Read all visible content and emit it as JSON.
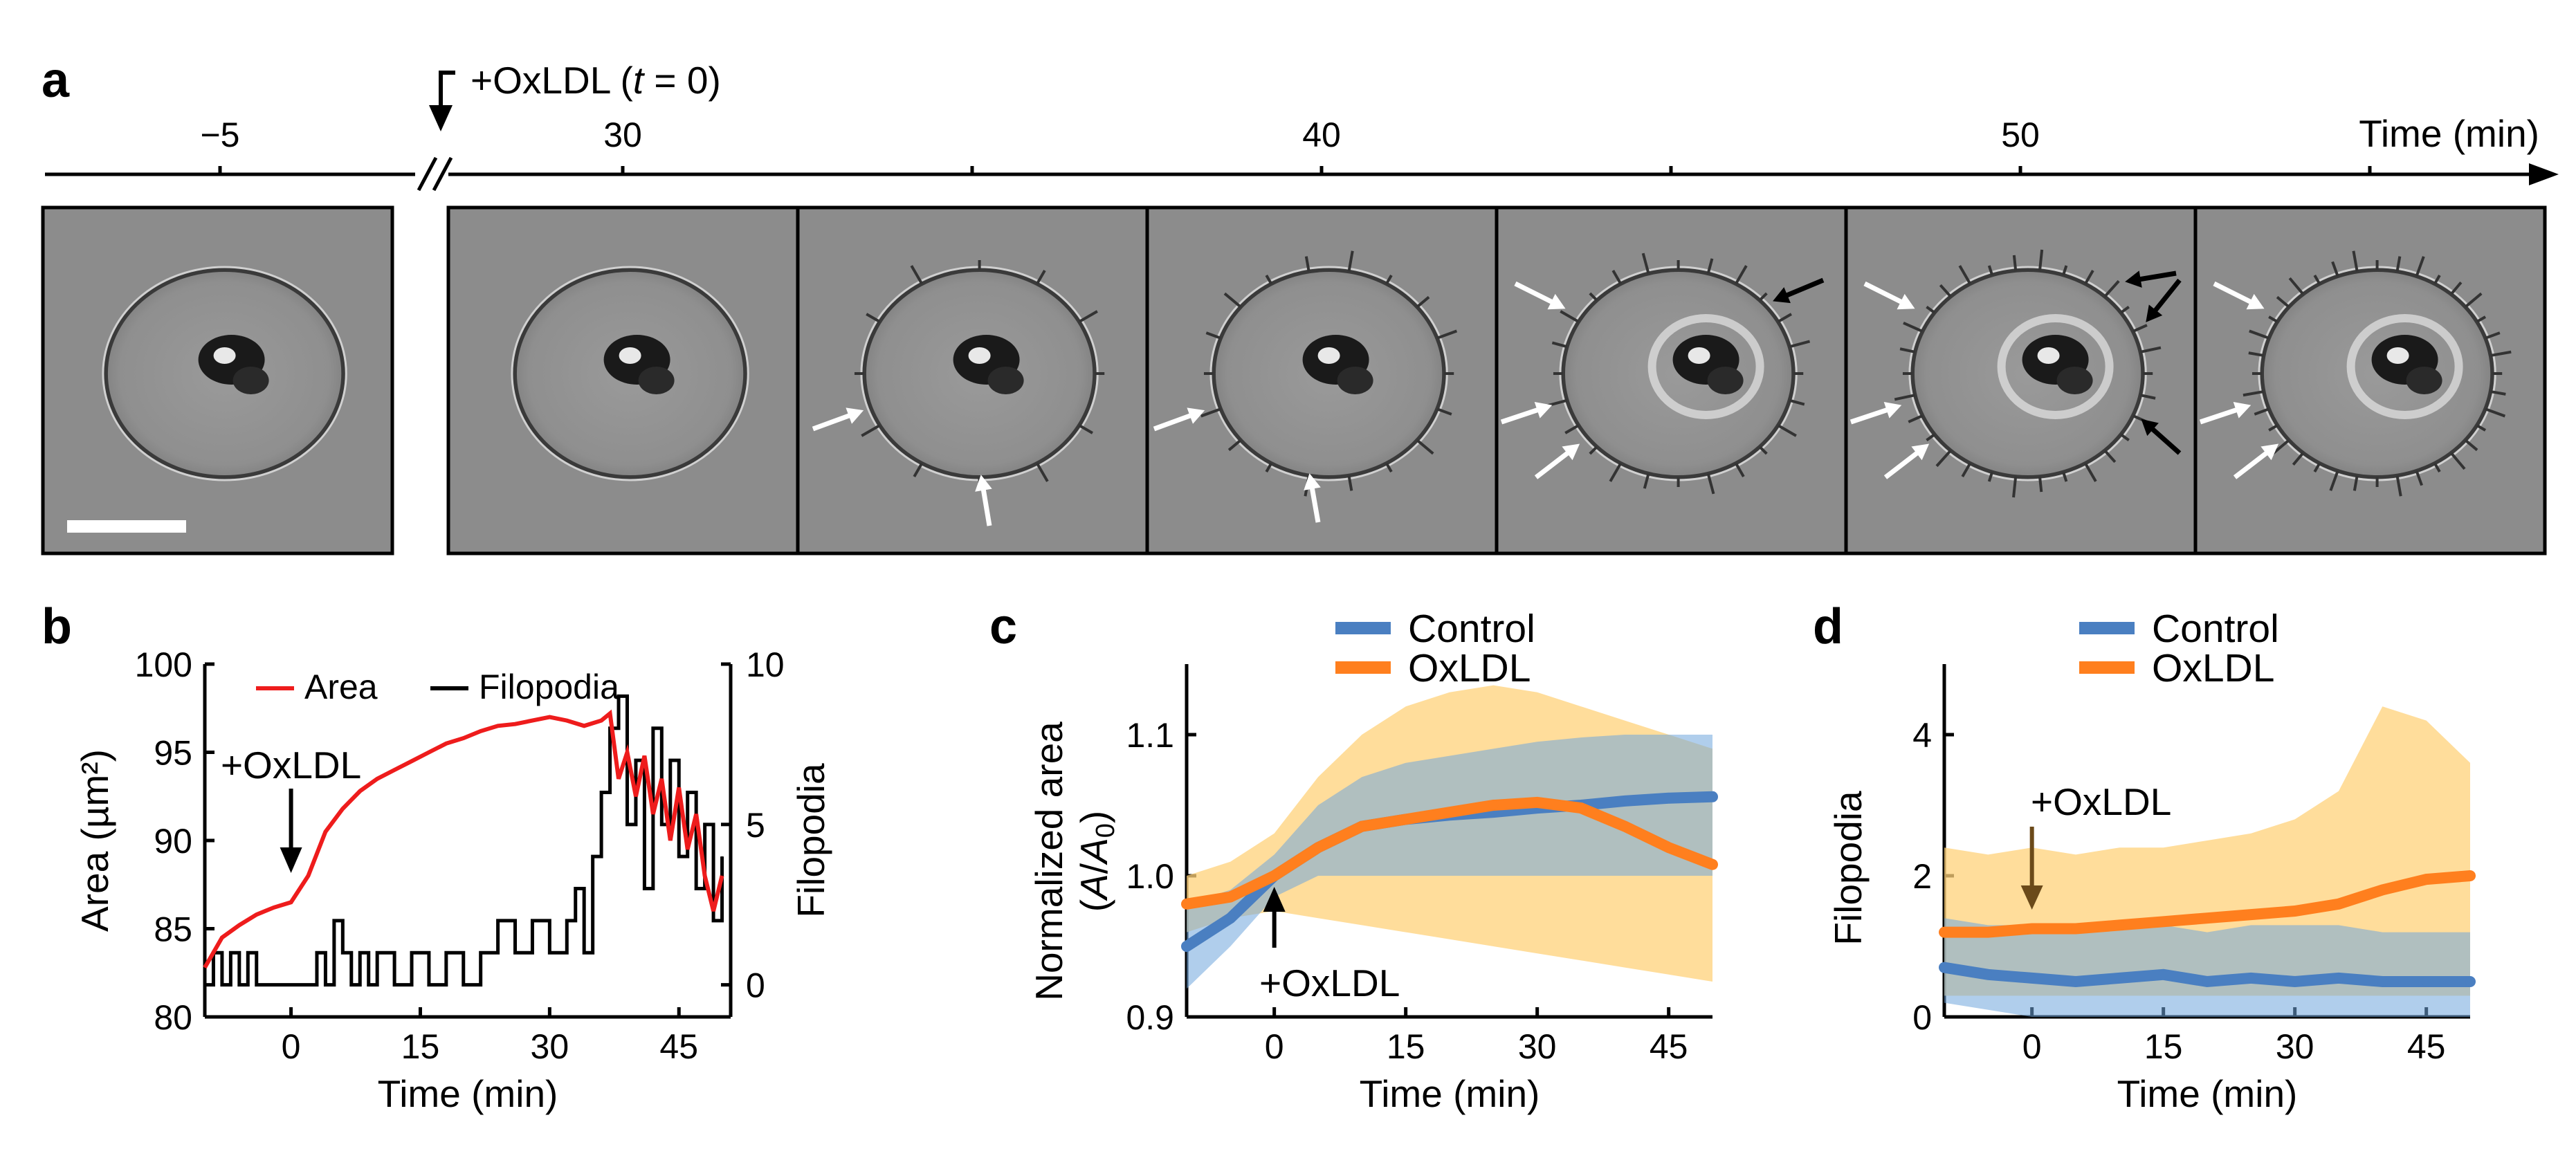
{
  "figure": {
    "panel_a": {
      "letter": "a",
      "timeline_label": "Time (min)",
      "treatment_label": "+OxLDL",
      "treatment_time": "t",
      "treatment_time_eq": " = 0",
      "ticks": [
        "−5",
        "30",
        "40",
        "50"
      ],
      "frames": [
        {
          "name": "frame-minus-5",
          "white_arrows": 0,
          "black_arrows": 0,
          "scale_bar": true
        },
        {
          "name": "frame-30",
          "white_arrows": 0,
          "black_arrows": 0
        },
        {
          "name": "frame-35",
          "white_arrows": 2,
          "black_arrows": 0
        },
        {
          "name": "frame-40",
          "white_arrows": 2,
          "black_arrows": 0
        },
        {
          "name": "frame-45",
          "white_arrows": 3,
          "black_arrows": 1
        },
        {
          "name": "frame-50",
          "white_arrows": 3,
          "black_arrows": 3
        },
        {
          "name": "frame-55",
          "white_arrows": 3,
          "black_arrows": 0
        }
      ]
    },
    "colors": {
      "area": "#ee1c1c",
      "filopodia": "#000000",
      "control": "#4a7fc1",
      "oxldl": "#ff7f1e",
      "control_band": "#6fa6dc",
      "oxldl_band": "#ffd27a",
      "image_gray": "#8c8c8c"
    }
  },
  "chart_data": [
    {
      "panel": "b",
      "type": "line",
      "title": "",
      "xlabel": "Time (min)",
      "ylabel": "Area (µm²)",
      "y2label": "Filopodia",
      "xlim": [
        -10,
        51
      ],
      "ylim": [
        80,
        100
      ],
      "y2lim": [
        -1,
        10
      ],
      "xticks": [
        "0",
        "15",
        "30",
        "45"
      ],
      "yticks": [
        "80",
        "85",
        "90",
        "95",
        "100"
      ],
      "y2ticks": [
        "0",
        "5",
        "10"
      ],
      "annotation": "+OxLDL",
      "legend_position": "top",
      "series": [
        {
          "name": "Area",
          "axis": "left",
          "x": [
            -10,
            -8,
            -6,
            -4,
            -2,
            0,
            2,
            4,
            6,
            8,
            10,
            12,
            14,
            16,
            18,
            20,
            22,
            24,
            26,
            28,
            30,
            32,
            34,
            36,
            37,
            38,
            39,
            40,
            41,
            42,
            43,
            44,
            45,
            46,
            47,
            48,
            49,
            50
          ],
          "values": [
            82.8,
            84.5,
            85.2,
            85.8,
            86.2,
            86.5,
            88.0,
            90.5,
            91.8,
            92.8,
            93.5,
            94.0,
            94.5,
            95.0,
            95.5,
            95.8,
            96.2,
            96.5,
            96.6,
            96.8,
            97.0,
            96.8,
            96.5,
            96.8,
            97.2,
            93.5,
            95.0,
            92.5,
            94.8,
            91.5,
            93.5,
            90.0,
            93.0,
            89.5,
            91.5,
            88.0,
            86.0,
            88.0
          ]
        },
        {
          "name": "Filopodia",
          "axis": "right",
          "x": [
            -10,
            -9,
            -8,
            -7,
            -6,
            -5,
            -4,
            -2,
            0,
            2,
            3,
            4,
            5,
            6,
            7,
            8,
            9,
            10,
            12,
            14,
            16,
            18,
            20,
            22,
            24,
            26,
            28,
            30,
            32,
            33,
            34,
            35,
            36,
            37,
            38,
            39,
            40,
            41,
            42,
            43,
            44,
            45,
            46,
            47,
            48,
            49,
            50
          ],
          "values": [
            0,
            1,
            0,
            1,
            0,
            1,
            0,
            0,
            0,
            0,
            1,
            0,
            2,
            1,
            0,
            1,
            0,
            1,
            0,
            1,
            0,
            1,
            0,
            1,
            2,
            1,
            2,
            1,
            2,
            3,
            1,
            4,
            6,
            8,
            9,
            5,
            7,
            3,
            8,
            5,
            7,
            4,
            6,
            3,
            5,
            2,
            4
          ]
        }
      ]
    },
    {
      "panel": "c",
      "type": "line",
      "title": "",
      "xlabel": "Time (min)",
      "ylabel": "Normalized area",
      "ylabel2_pre": "(",
      "ylabel2_A": "A",
      "ylabel2_slash": "/",
      "ylabel2_A0": "A",
      "ylabel2_sub": "0",
      "ylabel2_post": ")",
      "xlim": [
        -10,
        50
      ],
      "ylim": [
        0.9,
        1.15
      ],
      "xticks": [
        "0",
        "15",
        "30",
        "45"
      ],
      "yticks": [
        "0.9",
        "1.0",
        "1.1"
      ],
      "annotation": "+OxLDL",
      "legend_position": "top",
      "series": [
        {
          "name": "Control",
          "x": [
            -10,
            -5,
            0,
            5,
            10,
            15,
            20,
            25,
            30,
            35,
            40,
            45,
            50
          ],
          "values": [
            0.95,
            0.97,
            1.0,
            1.02,
            1.035,
            1.04,
            1.043,
            1.045,
            1.048,
            1.05,
            1.053,
            1.055,
            1.056
          ],
          "band_lower": [
            0.92,
            0.95,
            0.985,
            1.0,
            1.0,
            1.0,
            1.0,
            1.0,
            1.0,
            1.0,
            1.0,
            1.0,
            1.0
          ],
          "band_upper": [
            0.98,
            0.99,
            1.015,
            1.05,
            1.07,
            1.08,
            1.085,
            1.09,
            1.095,
            1.098,
            1.1,
            1.1,
            1.1
          ]
        },
        {
          "name": "OxLDL",
          "x": [
            -10,
            -5,
            0,
            5,
            10,
            15,
            20,
            25,
            30,
            35,
            40,
            45,
            50
          ],
          "values": [
            0.98,
            0.985,
            1.0,
            1.02,
            1.035,
            1.04,
            1.045,
            1.05,
            1.052,
            1.048,
            1.035,
            1.02,
            1.008
          ],
          "band_lower": [
            0.96,
            0.97,
            0.975,
            0.97,
            0.965,
            0.96,
            0.955,
            0.95,
            0.945,
            0.94,
            0.935,
            0.93,
            0.925
          ],
          "band_upper": [
            1.0,
            1.01,
            1.03,
            1.07,
            1.1,
            1.12,
            1.13,
            1.135,
            1.13,
            1.12,
            1.11,
            1.1,
            1.09
          ]
        }
      ]
    },
    {
      "panel": "d",
      "type": "line",
      "title": "",
      "xlabel": "Time (min)",
      "ylabel": "Filopodia",
      "xlim": [
        -10,
        50
      ],
      "ylim": [
        0,
        5
      ],
      "xticks": [
        "0",
        "15",
        "30",
        "45"
      ],
      "yticks": [
        "0",
        "2",
        "4"
      ],
      "annotation": "+OxLDL",
      "legend_position": "top",
      "series": [
        {
          "name": "Control",
          "x": [
            -10,
            -5,
            0,
            5,
            10,
            15,
            20,
            25,
            30,
            35,
            40,
            45,
            50
          ],
          "values": [
            0.7,
            0.6,
            0.55,
            0.5,
            0.55,
            0.6,
            0.5,
            0.55,
            0.5,
            0.55,
            0.5,
            0.5,
            0.5
          ],
          "band_lower": [
            0.2,
            0.1,
            0.0,
            0.0,
            0.0,
            0.0,
            0.0,
            0.0,
            0.0,
            0.0,
            0.0,
            0.0,
            0.0
          ],
          "band_upper": [
            1.4,
            1.3,
            1.3,
            1.2,
            1.3,
            1.3,
            1.2,
            1.3,
            1.3,
            1.3,
            1.2,
            1.2,
            1.2
          ]
        },
        {
          "name": "OxLDL",
          "x": [
            -10,
            -5,
            0,
            5,
            10,
            15,
            20,
            25,
            30,
            35,
            40,
            45,
            50
          ],
          "values": [
            1.2,
            1.2,
            1.25,
            1.25,
            1.3,
            1.35,
            1.4,
            1.45,
            1.5,
            1.6,
            1.8,
            1.95,
            2.0
          ],
          "band_lower": [
            0.3,
            0.3,
            0.3,
            0.3,
            0.3,
            0.3,
            0.3,
            0.3,
            0.3,
            0.3,
            0.3,
            0.3,
            0.3
          ],
          "band_upper": [
            2.4,
            2.3,
            2.4,
            2.3,
            2.4,
            2.4,
            2.5,
            2.6,
            2.8,
            3.2,
            4.4,
            4.2,
            3.6
          ]
        }
      ]
    }
  ]
}
